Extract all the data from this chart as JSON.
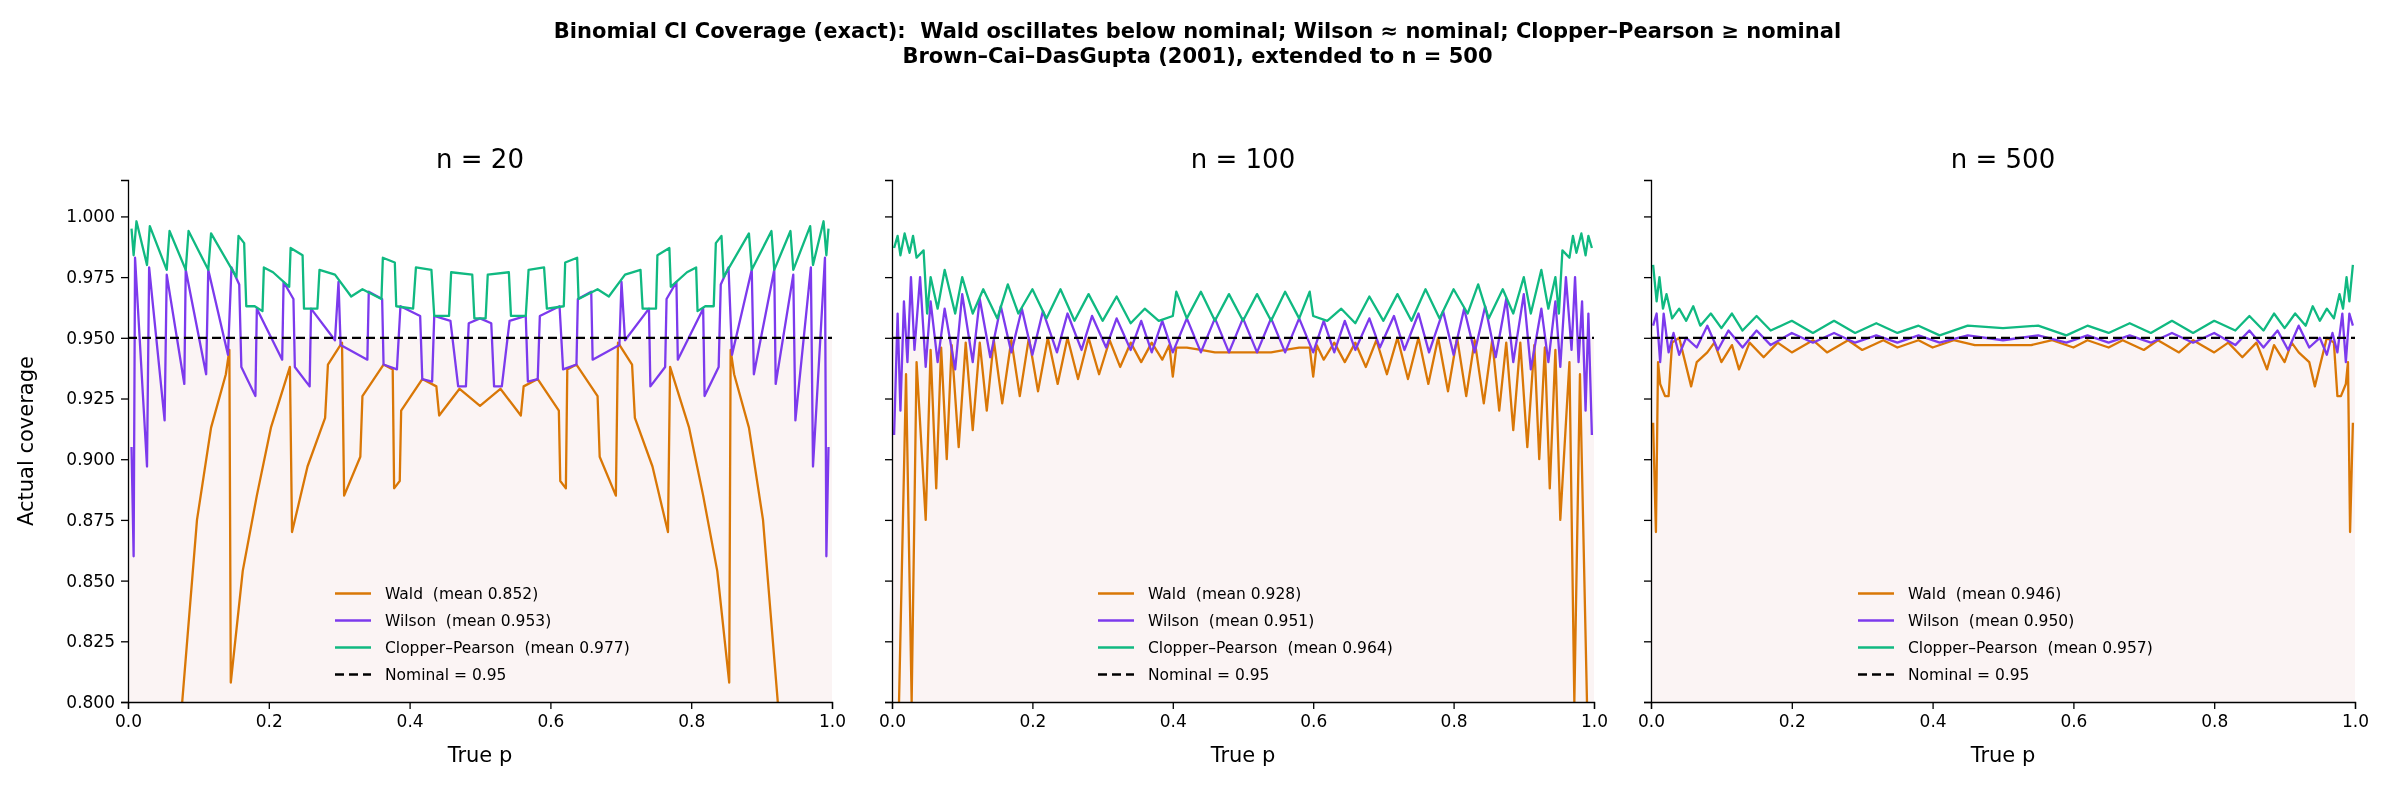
{
  "chart_data": [
    {
      "type": "line",
      "title": "n = 20",
      "xlabel": "True p",
      "ylabel": "Actual coverage",
      "annotations": [
        "Binomial CI Coverage (exact):  Wald oscillates below nominal; Wilson ≈ nominal; Clopper–Pearson ≥ nominal",
        "Brown–Cai–DasGupta (2001), extended to n = 500"
      ],
      "xlim": [
        0,
        1
      ],
      "ylim": [
        0.8,
        1.015
      ],
      "xticks": [
        {
          "value": 0,
          "label": "0.0"
        },
        {
          "value": 0.2,
          "label": "0.2"
        },
        {
          "value": 0.4,
          "label": "0.4"
        },
        {
          "value": 0.6,
          "label": "0.6"
        },
        {
          "value": 0.8,
          "label": "0.8"
        },
        {
          "value": 1,
          "label": "1.0"
        }
      ],
      "yticks": [
        {
          "value": 0.8,
          "label": "0.800"
        },
        {
          "value": 0.825,
          "label": "0.825"
        },
        {
          "value": 0.85,
          "label": "0.850"
        },
        {
          "value": 0.875,
          "label": "0.875"
        },
        {
          "value": 0.9,
          "label": "0.900"
        },
        {
          "value": 0.925,
          "label": "0.925"
        },
        {
          "value": 0.95,
          "label": "0.950"
        },
        {
          "value": 0.975,
          "label": "0.975"
        },
        {
          "value": 1,
          "label": "1.000"
        }
      ],
      "legend": "bottom",
      "bands": [
        {
          "axis": "y",
          "from": 0.8,
          "to": 0.95,
          "color": "#fbf4f4"
        }
      ],
      "ref_lines": [
        {
          "axis": "y",
          "value": 0.95,
          "label": "Nominal = 0.95",
          "color": "#000000",
          "line_style": "dashed"
        }
      ],
      "series": [
        {
          "name": "Wald  (mean 0.852)",
          "color": "#d97706",
          "x": [
            0.077,
            0.098,
            0.118,
            0.139,
            0.144,
            0.146,
            0.163,
            0.183,
            0.203,
            0.23,
            0.233,
            0.255,
            0.28,
            0.284,
            0.304,
            0.307,
            0.33,
            0.333,
            0.363,
            0.376,
            0.378,
            0.386,
            0.388,
            0.418,
            0.438,
            0.442,
            0.471,
            0.5,
            0.529,
            0.558,
            0.562,
            0.582,
            0.612,
            0.614,
            0.622,
            0.624,
            0.637,
            0.667,
            0.67,
            0.693,
            0.696,
            0.716,
            0.72,
            0.745,
            0.767,
            0.77,
            0.797,
            0.817,
            0.837,
            0.854,
            0.856,
            0.861,
            0.882,
            0.902,
            0.923
          ],
          "values": [
            0.8,
            0.875,
            0.913,
            0.935,
            0.945,
            0.808,
            0.854,
            0.885,
            0.913,
            0.938,
            0.87,
            0.897,
            0.917,
            0.939,
            0.948,
            0.885,
            0.901,
            0.926,
            0.939,
            0.937,
            0.888,
            0.891,
            0.92,
            0.933,
            0.93,
            0.918,
            0.929,
            0.922,
            0.929,
            0.918,
            0.93,
            0.933,
            0.92,
            0.891,
            0.888,
            0.937,
            0.939,
            0.926,
            0.901,
            0.885,
            0.948,
            0.939,
            0.917,
            0.897,
            0.87,
            0.938,
            0.913,
            0.885,
            0.854,
            0.808,
            0.945,
            0.935,
            0.913,
            0.875,
            0.8
          ]
        },
        {
          "name": "Wilson  (mean 0.953)",
          "color": "#7c3aed",
          "x": [
            0.005,
            0.008,
            0.01,
            0.027,
            0.03,
            0.052,
            0.055,
            0.08,
            0.082,
            0.111,
            0.114,
            0.142,
            0.147,
            0.158,
            0.161,
            0.181,
            0.183,
            0.219,
            0.221,
            0.235,
            0.237,
            0.258,
            0.26,
            0.294,
            0.299,
            0.302,
            0.34,
            0.342,
            0.361,
            0.363,
            0.382,
            0.387,
            0.415,
            0.418,
            0.432,
            0.435,
            0.458,
            0.469,
            0.48,
            0.484,
            0.5,
            0.516,
            0.52,
            0.531,
            0.542,
            0.565,
            0.568,
            0.582,
            0.585,
            0.613,
            0.618,
            0.637,
            0.639,
            0.658,
            0.66,
            0.698,
            0.701,
            0.706,
            0.74,
            0.742,
            0.763,
            0.765,
            0.779,
            0.781,
            0.817,
            0.819,
            0.839,
            0.842,
            0.853,
            0.858,
            0.886,
            0.889,
            0.918,
            0.92,
            0.945,
            0.948,
            0.97,
            0.973,
            0.99,
            0.992,
            0.995
          ],
          "values": [
            0.905,
            0.86,
            0.983,
            0.897,
            0.979,
            0.916,
            0.976,
            0.931,
            0.978,
            0.935,
            0.978,
            0.943,
            0.979,
            0.972,
            0.938,
            0.926,
            0.962,
            0.941,
            0.973,
            0.966,
            0.938,
            0.93,
            0.962,
            0.949,
            0.973,
            0.947,
            0.941,
            0.969,
            0.966,
            0.939,
            0.937,
            0.963,
            0.959,
            0.933,
            0.932,
            0.959,
            0.957,
            0.93,
            0.93,
            0.956,
            0.958,
            0.956,
            0.93,
            0.93,
            0.957,
            0.959,
            0.932,
            0.933,
            0.959,
            0.963,
            0.937,
            0.939,
            0.966,
            0.969,
            0.941,
            0.947,
            0.973,
            0.949,
            0.962,
            0.93,
            0.938,
            0.966,
            0.973,
            0.941,
            0.962,
            0.926,
            0.938,
            0.972,
            0.979,
            0.943,
            0.978,
            0.935,
            0.978,
            0.931,
            0.976,
            0.916,
            0.979,
            0.897,
            0.983,
            0.86,
            0.905
          ]
        },
        {
          "name": "Clopper–Pearson  (mean 0.977)",
          "color": "#10b981",
          "x": [
            0.005,
            0.008,
            0.012,
            0.027,
            0.031,
            0.055,
            0.059,
            0.082,
            0.086,
            0.114,
            0.118,
            0.154,
            0.157,
            0.165,
            0.168,
            0.18,
            0.191,
            0.193,
            0.206,
            0.229,
            0.231,
            0.248,
            0.25,
            0.269,
            0.272,
            0.294,
            0.317,
            0.333,
            0.36,
            0.362,
            0.379,
            0.381,
            0.405,
            0.409,
            0.431,
            0.435,
            0.456,
            0.459,
            0.489,
            0.492,
            0.5,
            0.508,
            0.511,
            0.541,
            0.544,
            0.565,
            0.569,
            0.591,
            0.595,
            0.619,
            0.621,
            0.638,
            0.64,
            0.667,
            0.683,
            0.706,
            0.728,
            0.731,
            0.75,
            0.752,
            0.769,
            0.771,
            0.794,
            0.807,
            0.809,
            0.82,
            0.832,
            0.835,
            0.843,
            0.846,
            0.882,
            0.886,
            0.914,
            0.918,
            0.941,
            0.945,
            0.969,
            0.973,
            0.988,
            0.992,
            0.995
          ],
          "values": [
            0.995,
            0.984,
            0.998,
            0.98,
            0.996,
            0.978,
            0.994,
            0.978,
            0.994,
            0.978,
            0.993,
            0.975,
            0.992,
            0.989,
            0.963,
            0.963,
            0.961,
            0.979,
            0.977,
            0.971,
            0.987,
            0.984,
            0.962,
            0.962,
            0.978,
            0.976,
            0.967,
            0.97,
            0.966,
            0.983,
            0.981,
            0.963,
            0.962,
            0.979,
            0.978,
            0.959,
            0.959,
            0.977,
            0.976,
            0.958,
            0.958,
            0.958,
            0.976,
            0.977,
            0.959,
            0.959,
            0.978,
            0.979,
            0.962,
            0.963,
            0.981,
            0.983,
            0.966,
            0.97,
            0.967,
            0.976,
            0.978,
            0.962,
            0.962,
            0.984,
            0.987,
            0.971,
            0.977,
            0.979,
            0.961,
            0.963,
            0.963,
            0.989,
            0.992,
            0.975,
            0.993,
            0.978,
            0.994,
            0.978,
            0.994,
            0.978,
            0.996,
            0.98,
            0.998,
            0.984,
            0.995
          ]
        }
      ]
    },
    {
      "type": "line",
      "title": "n = 100",
      "xlabel": "True p",
      "tick_labels": "x",
      "xlim": [
        0,
        1
      ],
      "ylim": [
        0.8,
        1.015
      ],
      "xticks": [
        {
          "value": 0,
          "label": "0.0"
        },
        {
          "value": 0.2,
          "label": "0.2"
        },
        {
          "value": 0.4,
          "label": "0.4"
        },
        {
          "value": 0.6,
          "label": "0.6"
        },
        {
          "value": 0.8,
          "label": "0.8"
        },
        {
          "value": 1,
          "label": "1.0"
        }
      ],
      "yticks": [
        {
          "value": 0.8,
          "label": null
        },
        {
          "value": 0.825,
          "label": null
        },
        {
          "value": 0.85,
          "label": null
        },
        {
          "value": 0.875,
          "label": null
        },
        {
          "value": 0.9,
          "label": null
        },
        {
          "value": 0.925,
          "label": null
        },
        {
          "value": 0.95,
          "label": null
        },
        {
          "value": 0.975,
          "label": null
        },
        {
          "value": 1,
          "label": null
        }
      ],
      "legend": "bottom",
      "bands": [
        {
          "axis": "y",
          "from": 0.8,
          "to": 0.95,
          "color": "#fbf4f4"
        }
      ],
      "ref_lines": [
        {
          "axis": "y",
          "value": 0.95,
          "label": "Nominal = 0.95",
          "color": "#000000",
          "line_style": "dashed"
        }
      ],
      "series": [
        {
          "name": "Wald  (mean 0.928)",
          "color": "#d97706",
          "x": [
            0.01,
            0.02,
            0.028,
            0.035,
            0.048,
            0.055,
            0.063,
            0.07,
            0.078,
            0.085,
            0.095,
            0.105,
            0.115,
            0.125,
            0.135,
            0.145,
            0.157,
            0.17,
            0.182,
            0.195,
            0.208,
            0.222,
            0.236,
            0.25,
            0.265,
            0.28,
            0.295,
            0.31,
            0.325,
            0.34,
            0.355,
            0.37,
            0.385,
            0.395,
            0.4,
            0.405,
            0.42,
            0.44,
            0.46,
            0.48,
            0.5,
            0.52,
            0.54,
            0.56,
            0.58,
            0.595,
            0.6,
            0.605,
            0.615,
            0.63,
            0.645,
            0.66,
            0.675,
            0.69,
            0.705,
            0.72,
            0.735,
            0.75,
            0.764,
            0.778,
            0.792,
            0.805,
            0.818,
            0.83,
            0.843,
            0.855,
            0.865,
            0.875,
            0.885,
            0.895,
            0.905,
            0.915,
            0.922,
            0.93,
            0.937,
            0.945,
            0.952,
            0.965,
            0.972,
            0.98,
            0.99
          ],
          "values": [
            0.8,
            0.935,
            0.8,
            0.94,
            0.875,
            0.945,
            0.888,
            0.946,
            0.9,
            0.947,
            0.905,
            0.948,
            0.912,
            0.948,
            0.92,
            0.949,
            0.923,
            0.949,
            0.926,
            0.95,
            0.928,
            0.95,
            0.931,
            0.95,
            0.933,
            0.95,
            0.935,
            0.949,
            0.938,
            0.948,
            0.94,
            0.948,
            0.941,
            0.947,
            0.934,
            0.946,
            0.946,
            0.945,
            0.944,
            0.944,
            0.944,
            0.944,
            0.944,
            0.945,
            0.946,
            0.946,
            0.934,
            0.947,
            0.941,
            0.948,
            0.94,
            0.948,
            0.938,
            0.949,
            0.935,
            0.95,
            0.933,
            0.95,
            0.931,
            0.95,
            0.928,
            0.95,
            0.926,
            0.949,
            0.923,
            0.949,
            0.92,
            0.948,
            0.912,
            0.948,
            0.905,
            0.947,
            0.9,
            0.946,
            0.888,
            0.945,
            0.875,
            0.94,
            0.8,
            0.935,
            0.8
          ]
        },
        {
          "name": "Wilson  (mean 0.951)",
          "color": "#7c3aed",
          "x": [
            0.003,
            0.008,
            0.012,
            0.017,
            0.022,
            0.027,
            0.032,
            0.04,
            0.048,
            0.055,
            0.065,
            0.075,
            0.09,
            0.1,
            0.115,
            0.125,
            0.14,
            0.155,
            0.17,
            0.185,
            0.2,
            0.215,
            0.235,
            0.25,
            0.27,
            0.285,
            0.305,
            0.32,
            0.34,
            0.355,
            0.37,
            0.385,
            0.4,
            0.42,
            0.44,
            0.46,
            0.48,
            0.5,
            0.52,
            0.54,
            0.56,
            0.58,
            0.6,
            0.615,
            0.63,
            0.645,
            0.66,
            0.68,
            0.695,
            0.715,
            0.73,
            0.75,
            0.765,
            0.785,
            0.8,
            0.815,
            0.83,
            0.845,
            0.86,
            0.875,
            0.885,
            0.9,
            0.91,
            0.925,
            0.935,
            0.945,
            0.952,
            0.96,
            0.968,
            0.973,
            0.978,
            0.983,
            0.988,
            0.992,
            0.997
          ],
          "values": [
            0.91,
            0.96,
            0.92,
            0.965,
            0.94,
            0.975,
            0.945,
            0.975,
            0.938,
            0.965,
            0.94,
            0.962,
            0.937,
            0.968,
            0.94,
            0.966,
            0.942,
            0.963,
            0.944,
            0.962,
            0.943,
            0.961,
            0.944,
            0.96,
            0.945,
            0.959,
            0.946,
            0.958,
            0.945,
            0.957,
            0.944,
            0.957,
            0.944,
            0.958,
            0.944,
            0.958,
            0.944,
            0.958,
            0.944,
            0.958,
            0.944,
            0.958,
            0.944,
            0.957,
            0.944,
            0.957,
            0.945,
            0.958,
            0.946,
            0.959,
            0.945,
            0.96,
            0.944,
            0.961,
            0.943,
            0.962,
            0.944,
            0.963,
            0.942,
            0.966,
            0.94,
            0.968,
            0.937,
            0.962,
            0.94,
            0.965,
            0.938,
            0.975,
            0.945,
            0.975,
            0.94,
            0.965,
            0.92,
            0.96,
            0.91
          ]
        },
        {
          "name": "Clopper–Pearson  (mean 0.964)",
          "color": "#10b981",
          "x": [
            0.003,
            0.008,
            0.012,
            0.018,
            0.025,
            0.03,
            0.035,
            0.045,
            0.05,
            0.055,
            0.065,
            0.075,
            0.09,
            0.1,
            0.115,
            0.13,
            0.15,
            0.165,
            0.18,
            0.2,
            0.22,
            0.24,
            0.26,
            0.28,
            0.3,
            0.32,
            0.34,
            0.36,
            0.38,
            0.4,
            0.405,
            0.42,
            0.44,
            0.46,
            0.48,
            0.5,
            0.52,
            0.54,
            0.56,
            0.58,
            0.595,
            0.6,
            0.62,
            0.64,
            0.66,
            0.68,
            0.7,
            0.72,
            0.74,
            0.76,
            0.78,
            0.8,
            0.82,
            0.835,
            0.85,
            0.87,
            0.885,
            0.9,
            0.91,
            0.925,
            0.935,
            0.945,
            0.95,
            0.955,
            0.965,
            0.97,
            0.975,
            0.982,
            0.988,
            0.992,
            0.997
          ],
          "values": [
            0.987,
            0.992,
            0.984,
            0.993,
            0.985,
            0.992,
            0.983,
            0.986,
            0.96,
            0.975,
            0.962,
            0.978,
            0.96,
            0.975,
            0.96,
            0.97,
            0.958,
            0.972,
            0.96,
            0.97,
            0.958,
            0.97,
            0.957,
            0.968,
            0.957,
            0.967,
            0.956,
            0.962,
            0.957,
            0.959,
            0.969,
            0.958,
            0.969,
            0.957,
            0.968,
            0.957,
            0.968,
            0.957,
            0.969,
            0.958,
            0.969,
            0.959,
            0.957,
            0.962,
            0.956,
            0.967,
            0.957,
            0.968,
            0.957,
            0.97,
            0.958,
            0.97,
            0.96,
            0.972,
            0.958,
            0.97,
            0.96,
            0.975,
            0.96,
            0.978,
            0.962,
            0.975,
            0.96,
            0.986,
            0.983,
            0.992,
            0.985,
            0.993,
            0.984,
            0.992,
            0.987
          ]
        }
      ]
    },
    {
      "type": "line",
      "title": "n = 500",
      "xlabel": "True p",
      "tick_labels": "x",
      "xlim": [
        0,
        1
      ],
      "ylim": [
        0.8,
        1.015
      ],
      "xticks": [
        {
          "value": 0,
          "label": "0.0"
        },
        {
          "value": 0.2,
          "label": "0.2"
        },
        {
          "value": 0.4,
          "label": "0.4"
        },
        {
          "value": 0.6,
          "label": "0.6"
        },
        {
          "value": 0.8,
          "label": "0.8"
        },
        {
          "value": 1,
          "label": "1.0"
        }
      ],
      "yticks": [
        {
          "value": 0.8,
          "label": null
        },
        {
          "value": 0.825,
          "label": null
        },
        {
          "value": 0.85,
          "label": null
        },
        {
          "value": 0.875,
          "label": null
        },
        {
          "value": 0.9,
          "label": null
        },
        {
          "value": 0.925,
          "label": null
        },
        {
          "value": 0.95,
          "label": null
        },
        {
          "value": 0.975,
          "label": null
        },
        {
          "value": 1,
          "label": null
        }
      ],
      "legend": "bottom",
      "bands": [
        {
          "axis": "y",
          "from": 0.8,
          "to": 0.95,
          "color": "#fbf4f4"
        }
      ],
      "ref_lines": [
        {
          "axis": "y",
          "value": 0.95,
          "label": "Nominal = 0.95",
          "color": "#000000",
          "line_style": "dashed"
        }
      ],
      "series": [
        {
          "name": "Wald  (mean 0.946)",
          "color": "#d97706",
          "x": [
            0.003,
            0.007,
            0.01,
            0.013,
            0.02,
            0.025,
            0.03,
            0.04,
            0.057,
            0.065,
            0.08,
            0.09,
            0.1,
            0.115,
            0.125,
            0.14,
            0.16,
            0.18,
            0.2,
            0.23,
            0.25,
            0.28,
            0.3,
            0.33,
            0.35,
            0.38,
            0.4,
            0.43,
            0.46,
            0.5,
            0.54,
            0.57,
            0.6,
            0.62,
            0.65,
            0.67,
            0.7,
            0.72,
            0.75,
            0.77,
            0.8,
            0.82,
            0.84,
            0.86,
            0.875,
            0.885,
            0.9,
            0.91,
            0.92,
            0.935,
            0.943,
            0.96,
            0.97,
            0.975,
            0.98,
            0.987,
            0.99,
            0.993,
            0.997
          ],
          "values": [
            0.915,
            0.87,
            0.94,
            0.931,
            0.926,
            0.926,
            0.948,
            0.95,
            0.93,
            0.94,
            0.944,
            0.948,
            0.94,
            0.947,
            0.937,
            0.948,
            0.942,
            0.948,
            0.944,
            0.949,
            0.944,
            0.949,
            0.945,
            0.949,
            0.946,
            0.949,
            0.946,
            0.949,
            0.947,
            0.947,
            0.947,
            0.949,
            0.946,
            0.949,
            0.946,
            0.949,
            0.945,
            0.949,
            0.944,
            0.949,
            0.944,
            0.948,
            0.942,
            0.948,
            0.937,
            0.947,
            0.94,
            0.948,
            0.944,
            0.94,
            0.93,
            0.95,
            0.948,
            0.926,
            0.926,
            0.931,
            0.94,
            0.87,
            0.915
          ]
        },
        {
          "name": "Wilson  (mean 0.950)",
          "color": "#7c3aed",
          "x": [
            0.003,
            0.008,
            0.013,
            0.018,
            0.025,
            0.032,
            0.04,
            0.05,
            0.065,
            0.08,
            0.095,
            0.11,
            0.13,
            0.15,
            0.17,
            0.2,
            0.23,
            0.26,
            0.29,
            0.32,
            0.35,
            0.38,
            0.41,
            0.45,
            0.5,
            0.55,
            0.59,
            0.62,
            0.65,
            0.68,
            0.71,
            0.74,
            0.77,
            0.8,
            0.83,
            0.85,
            0.87,
            0.89,
            0.905,
            0.92,
            0.935,
            0.95,
            0.96,
            0.968,
            0.975,
            0.982,
            0.987,
            0.992,
            0.997
          ],
          "values": [
            0.955,
            0.96,
            0.94,
            0.96,
            0.944,
            0.952,
            0.943,
            0.95,
            0.946,
            0.955,
            0.945,
            0.953,
            0.946,
            0.953,
            0.947,
            0.952,
            0.948,
            0.952,
            0.948,
            0.951,
            0.948,
            0.951,
            0.948,
            0.951,
            0.949,
            0.951,
            0.948,
            0.951,
            0.948,
            0.951,
            0.948,
            0.952,
            0.948,
            0.952,
            0.947,
            0.953,
            0.946,
            0.953,
            0.945,
            0.955,
            0.946,
            0.95,
            0.943,
            0.952,
            0.944,
            0.96,
            0.94,
            0.96,
            0.955
          ]
        },
        {
          "name": "Clopper–Pearson  (mean 0.957)",
          "color": "#10b981",
          "x": [
            0.003,
            0.008,
            0.012,
            0.017,
            0.022,
            0.03,
            0.04,
            0.05,
            0.06,
            0.07,
            0.085,
            0.1,
            0.115,
            0.13,
            0.15,
            0.17,
            0.2,
            0.23,
            0.26,
            0.29,
            0.32,
            0.35,
            0.38,
            0.41,
            0.45,
            0.5,
            0.55,
            0.59,
            0.62,
            0.65,
            0.68,
            0.71,
            0.74,
            0.77,
            0.8,
            0.83,
            0.85,
            0.87,
            0.885,
            0.9,
            0.915,
            0.93,
            0.94,
            0.95,
            0.96,
            0.97,
            0.978,
            0.983,
            0.988,
            0.992,
            0.997
          ],
          "values": [
            0.98,
            0.965,
            0.975,
            0.962,
            0.968,
            0.958,
            0.962,
            0.957,
            0.963,
            0.955,
            0.96,
            0.954,
            0.96,
            0.953,
            0.959,
            0.953,
            0.957,
            0.952,
            0.957,
            0.952,
            0.956,
            0.952,
            0.955,
            0.951,
            0.955,
            0.954,
            0.955,
            0.951,
            0.955,
            0.952,
            0.956,
            0.952,
            0.957,
            0.952,
            0.957,
            0.953,
            0.959,
            0.953,
            0.96,
            0.954,
            0.96,
            0.955,
            0.963,
            0.957,
            0.962,
            0.958,
            0.968,
            0.962,
            0.975,
            0.965,
            0.98
          ]
        }
      ]
    }
  ]
}
